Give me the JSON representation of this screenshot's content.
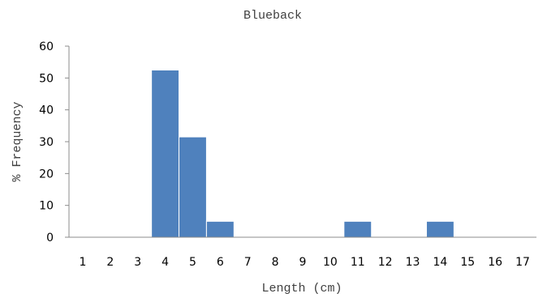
{
  "chart_data": {
    "type": "bar",
    "title": "Blueback",
    "xlabel": "Length (cm)",
    "ylabel": "% Frequency",
    "categories": [
      "1",
      "2",
      "3",
      "4",
      "5",
      "6",
      "7",
      "8",
      "9",
      "10",
      "11",
      "12",
      "13",
      "14",
      "15",
      "16",
      "17"
    ],
    "values": [
      0,
      0,
      0,
      52.5,
      31.5,
      5,
      0,
      0,
      0,
      0,
      5,
      0,
      0,
      5,
      0,
      0,
      0
    ],
    "ylim": [
      0,
      60
    ],
    "yticks": [
      "0",
      "10",
      "20",
      "30",
      "40",
      "50",
      "60"
    ],
    "grid": false,
    "legend": "none",
    "bar_color": "#4f81bd"
  }
}
